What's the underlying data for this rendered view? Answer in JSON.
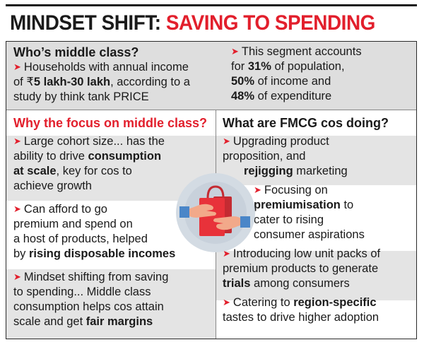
{
  "title": {
    "part1": "MINDSET SHIFT:",
    "part2": "SAVING TO SPENDING"
  },
  "who": {
    "heading": "Who’s middle class?",
    "l1": "Households with annual income",
    "l2_a": "of ₹",
    "l2_b": "5 lakh-30 lakh",
    "l2_c": ", according to a",
    "l3": "study by think tank PRICE"
  },
  "segment": {
    "l1": "This segment accounts",
    "l2_a": "for ",
    "l2_b": "31%",
    "l2_c": " of population,",
    "l3_a": "50%",
    "l3_b": " of income and",
    "l4_a": "48%",
    "l4_b": " of expenditure"
  },
  "why": {
    "heading": "Why the focus on middle class?",
    "p1_l1": "Large cohort size... has the",
    "p1_l2_a": "ability to drive ",
    "p1_l2_b": "consumption",
    "p1_l3_a": "at scale",
    "p1_l3_b": ", key for cos to",
    "p1_l4": "achieve growth",
    "p2_l1": "Can afford to go",
    "p2_l2": "premium and spend on",
    "p2_l3": "a host of products, helped",
    "p2_l4_a": "by ",
    "p2_l4_b": "rising disposable incomes",
    "p3_l1": "Mindset shifting from saving",
    "p3_l2": "to spending... Middle class",
    "p3_l3": "consumption helps cos attain",
    "p3_l4_a": "scale and get ",
    "p3_l4_b": "fair margins"
  },
  "fmcg": {
    "heading": "What are FMCG cos doing?",
    "p1_l1": "Upgrading product",
    "p1_l2": "proposition, and",
    "p1_l3_a": "rejigging",
    "p1_l3_b": " marketing",
    "p2_l1": "Focusing on",
    "p2_l2_a": "premiumisation",
    "p2_l2_b": " to",
    "p2_l3": "cater to rising",
    "p2_l4": "consumer aspirations",
    "p3_l1": "Introducing low unit packs of",
    "p3_l2": "premium products to generate",
    "p3_l3_a": "trials",
    "p3_l3_b": " among consumers",
    "p4_l1_a": "Catering to ",
    "p4_l1_b": "region-specific",
    "p4_l2": "tastes to drive higher adoption"
  },
  "colors": {
    "accent": "#e21f2c",
    "panel": "#dedede",
    "bag": "#e8323a",
    "hand": "#f2a98a",
    "circle": "#d3dbe3"
  },
  "icons": {
    "bullet": "arrow-bullet-icon",
    "illustration": "shopping-bag-hands-icon"
  }
}
